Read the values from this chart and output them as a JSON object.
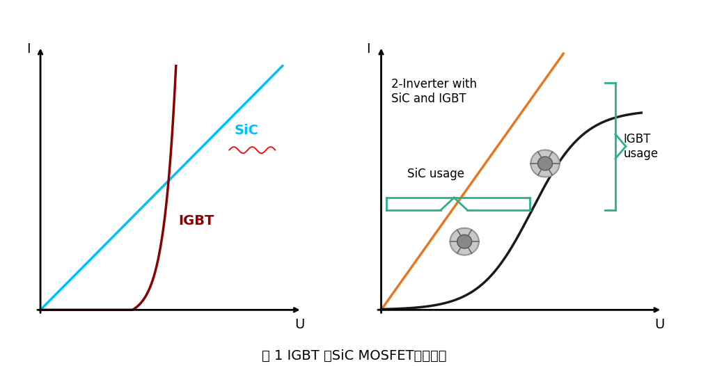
{
  "fig_width": 10.17,
  "fig_height": 5.26,
  "bg_color": "#ffffff",
  "title": "图 1 IGBT 和SiC MOSFET导通特性",
  "title_fontsize": 14,
  "left_plot": {
    "sic_color": "#00BFFF",
    "igbt_color": "#8B0000",
    "sic_label": "SiC",
    "igbt_label": "IGBT",
    "xlabel": "U",
    "ylabel": "I"
  },
  "right_plot": {
    "orange_line_color": "#E87722",
    "black_curve_color": "#1a1a1a",
    "bracket_color": "#2BAE8E",
    "text_2inverter": "2-Inverter with\nSiC and IGBT",
    "text_sic_usage": "SiC usage",
    "text_igbt_usage": "IGBT\nusage",
    "xlabel": "U",
    "ylabel": "I"
  }
}
